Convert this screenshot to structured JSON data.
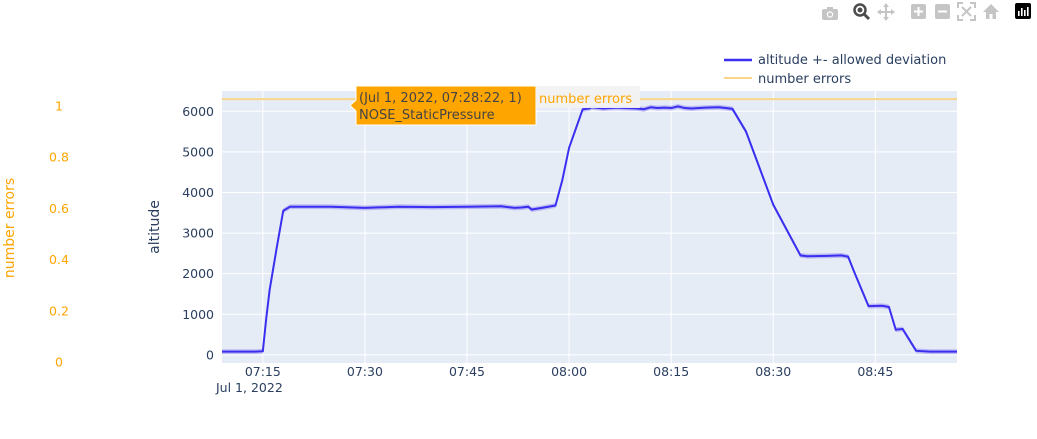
{
  "modebar": {
    "buttons": [
      {
        "name": "camera-icon"
      },
      {
        "name": "zoom-icon"
      },
      {
        "name": "pan-icon"
      },
      {
        "name": "zoom-in-icon"
      },
      {
        "name": "zoom-out-icon"
      },
      {
        "name": "autoscale-icon"
      },
      {
        "name": "home-icon"
      },
      {
        "name": "plotly-logo-icon"
      }
    ]
  },
  "colors": {
    "altitude": "#3a2ff0",
    "band": "#b7b1f2",
    "errors": "#f8d58a",
    "plot_bg": "#e5ecf6",
    "axis_text": "#2a3f5f",
    "secondary_axis": "#ffa500",
    "tooltip_bg": "#ffa500"
  },
  "hover": {
    "line1": "(Jul 1, 2022, 07:28:22, 1)",
    "line2": "NOSE_StaticPressure",
    "trace_label": "number errors"
  },
  "chart_data": {
    "type": "line",
    "xlabel": "",
    "x_date_label": "Jul 1, 2022",
    "x_ticks": [
      "07:15",
      "07:30",
      "07:45",
      "08:00",
      "08:15",
      "08:30",
      "08:45"
    ],
    "x_tick_minutes": [
      435,
      450,
      465,
      480,
      495,
      510,
      525
    ],
    "xlim_minutes": [
      429,
      537
    ],
    "ylabel": "altitude",
    "ylim": [
      -200,
      6500
    ],
    "y_ticks": [
      0,
      1000,
      2000,
      3000,
      4000,
      5000,
      6000
    ],
    "y_tick_labels": [
      "0",
      "1000",
      "2000",
      "3000",
      "4000",
      "5000",
      "6000"
    ],
    "y2label": "number errors",
    "y2lim": [
      0,
      1
    ],
    "y2_ticks": [
      0,
      0.2,
      0.4,
      0.6,
      0.8,
      1
    ],
    "y2_tick_labels": [
      "0",
      "0.2",
      "0.4",
      "0.6",
      "0.8",
      "1"
    ],
    "legend": {
      "placement": "top-right"
    },
    "grid": true,
    "series": [
      {
        "name": "altitude +- allowed deviation",
        "axis": "y",
        "deviation": 60,
        "x_minutes": [
          429,
          434,
          435,
          435.5,
          436,
          437,
          438,
          439,
          440,
          445,
          450,
          455,
          460,
          465,
          470,
          472,
          473,
          474,
          474.5,
          476,
          478,
          479,
          480,
          482,
          483,
          483.3,
          485,
          487,
          488,
          490,
          491,
          492,
          493,
          494,
          495,
          496,
          497,
          498,
          500,
          502,
          503,
          504,
          506,
          508,
          510,
          514,
          515,
          518,
          520,
          521,
          522,
          523,
          524,
          526,
          527,
          528,
          529,
          531,
          533,
          535,
          537
        ],
        "y": [
          80,
          80,
          90,
          900,
          1600,
          2600,
          3550,
          3650,
          3650,
          3650,
          3620,
          3650,
          3640,
          3650,
          3660,
          3620,
          3630,
          3650,
          3580,
          3620,
          3680,
          4300,
          5100,
          6050,
          6070,
          6100,
          6070,
          6090,
          6080,
          6070,
          6050,
          6100,
          6080,
          6090,
          6080,
          6120,
          6080,
          6070,
          6090,
          6100,
          6080,
          6060,
          5500,
          4600,
          3700,
          2450,
          2430,
          2440,
          2450,
          2420,
          2000,
          1600,
          1200,
          1210,
          1180,
          620,
          640,
          100,
          80,
          80,
          80
        ]
      },
      {
        "name": "number errors",
        "axis": "y2",
        "x_minutes": [
          429,
          537
        ],
        "y": [
          1,
          1
        ]
      }
    ]
  }
}
